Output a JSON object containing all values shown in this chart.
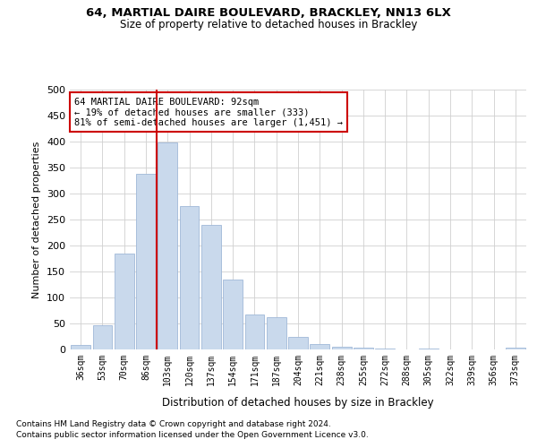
{
  "title1": "64, MARTIAL DAIRE BOULEVARD, BRACKLEY, NN13 6LX",
  "title2": "Size of property relative to detached houses in Brackley",
  "xlabel": "Distribution of detached houses by size in Brackley",
  "ylabel": "Number of detached properties",
  "categories": [
    "36sqm",
    "53sqm",
    "70sqm",
    "86sqm",
    "103sqm",
    "120sqm",
    "137sqm",
    "154sqm",
    "171sqm",
    "187sqm",
    "204sqm",
    "221sqm",
    "238sqm",
    "255sqm",
    "272sqm",
    "288sqm",
    "305sqm",
    "322sqm",
    "339sqm",
    "356sqm",
    "373sqm"
  ],
  "values": [
    8,
    46,
    185,
    338,
    398,
    276,
    240,
    135,
    68,
    62,
    25,
    11,
    5,
    4,
    2,
    0,
    2,
    0,
    0,
    0,
    4
  ],
  "bar_color": "#c9d9ec",
  "bar_edgecolor": "#a0b8d8",
  "vline_x": 3.5,
  "vline_color": "#cc0000",
  "annotation_line1": "64 MARTIAL DAIRE BOULEVARD: 92sqm",
  "annotation_line2": "← 19% of detached houses are smaller (333)",
  "annotation_line3": "81% of semi-detached houses are larger (1,451) →",
  "annotation_box_color": "#ffffff",
  "annotation_box_edgecolor": "#cc0000",
  "ylim": [
    0,
    500
  ],
  "yticks": [
    0,
    50,
    100,
    150,
    200,
    250,
    300,
    350,
    400,
    450,
    500
  ],
  "footnote1": "Contains HM Land Registry data © Crown copyright and database right 2024.",
  "footnote2": "Contains public sector information licensed under the Open Government Licence v3.0.",
  "background_color": "#ffffff",
  "grid_color": "#d0d0d0"
}
